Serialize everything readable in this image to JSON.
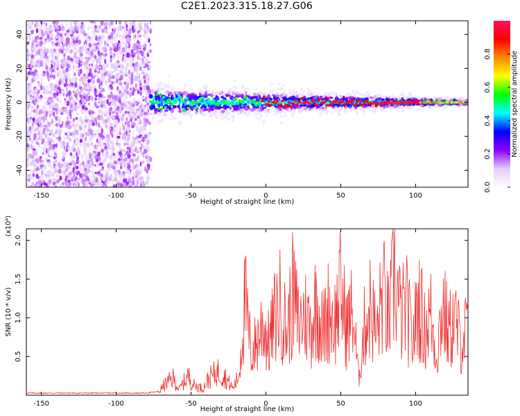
{
  "title": "C2E1.2023.315.18.27.G06",
  "chart_data": [
    {
      "type": "heatmap",
      "xlabel": "Height of straight line (km)",
      "ylabel": "Frequency (Hz)",
      "xlim": [
        -160,
        135
      ],
      "ylim": [
        -50,
        48
      ],
      "xticks": [
        -150,
        -100,
        -50,
        0,
        50,
        100
      ],
      "yticks": [
        -40,
        -20,
        0,
        20,
        40
      ],
      "noise_region_x": [
        -160,
        -77
      ],
      "signal_region_x": [
        -77,
        135
      ],
      "signal_center_frequency": 0,
      "colorbar": {
        "label": "Normalized spectral amplitude",
        "range": [
          0,
          1
        ],
        "ticks": [
          "0.0",
          "0.2",
          "0.4",
          "0.6",
          "0.8"
        ],
        "colormap": [
          "#ffffff",
          "#e3cdfb",
          "#8f00ff",
          "#0000ff",
          "#00ffff",
          "#00ff00",
          "#ffff00",
          "#ff8800",
          "#ff0000",
          "#ff1060"
        ]
      },
      "grid": false,
      "legend": "none"
    },
    {
      "type": "line",
      "xlabel": "Height of straight line (km)",
      "ylabel": "SNR (10 * v/v)",
      "y_multiplier": "(x10⁴)",
      "xlim": [
        -160,
        135
      ],
      "ylim": [
        0,
        2.15
      ],
      "xticks": [
        -150,
        -100,
        -50,
        0,
        50,
        100
      ],
      "yticks": [
        "0.5",
        "1.0",
        "1.5",
        "2.0"
      ],
      "color": "#ee3030",
      "series": [
        {
          "x": [
            -160,
            -140,
            -120,
            -100,
            -80,
            -72,
            -68,
            -62,
            -58,
            -52,
            -48,
            -42,
            -38,
            -32,
            -28,
            -22,
            -18,
            -14,
            -10,
            -6,
            -2,
            2,
            6,
            10,
            14,
            18,
            22,
            26,
            30,
            34,
            38,
            42,
            46,
            50,
            54,
            58,
            62,
            66,
            70,
            74,
            78,
            82,
            86,
            90,
            94,
            98,
            102,
            106,
            110,
            114,
            118,
            122,
            126,
            130,
            135
          ],
          "values": [
            0.02,
            0.02,
            0.02,
            0.02,
            0.02,
            0.04,
            0.18,
            0.3,
            0.1,
            0.35,
            0.18,
            0.12,
            0.3,
            0.42,
            0.35,
            0.12,
            0.35,
            1.7,
            0.75,
            0.95,
            1.3,
            0.9,
            1.4,
            1.65,
            1.1,
            1.8,
            1.25,
            1.45,
            1.2,
            1.7,
            1.1,
            1.55,
            1.3,
            1.85,
            1.2,
            1.5,
            0.3,
            1.25,
            1.6,
            1.05,
            1.85,
            1.3,
            2.12,
            1.4,
            1.55,
            0.95,
            1.7,
            1.15,
            1.45,
            0.7,
            1.6,
            1.1,
            1.35,
            0.95,
            1.2
          ]
        }
      ],
      "grid": false,
      "legend": "none"
    }
  ]
}
